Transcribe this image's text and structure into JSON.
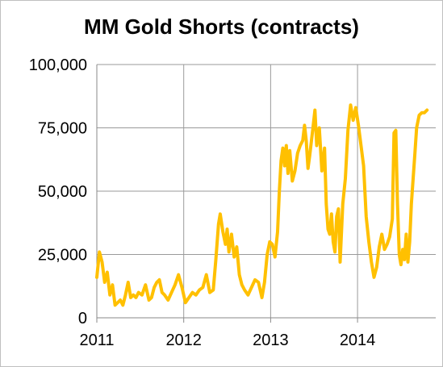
{
  "chart_data": {
    "type": "line",
    "title": "MM Gold Shorts (contracts)",
    "xlabel": "",
    "ylabel": "",
    "ylim": [
      0,
      100000
    ],
    "xlim": [
      2011,
      2014.9
    ],
    "y_ticks": [
      {
        "value": 0,
        "label": "0"
      },
      {
        "value": 25000,
        "label": "25,000"
      },
      {
        "value": 50000,
        "label": "50,000"
      },
      {
        "value": 75000,
        "label": "75,000"
      },
      {
        "value": 100000,
        "label": "100,000"
      }
    ],
    "x_ticks": [
      {
        "value": 2011,
        "label": "2011"
      },
      {
        "value": 2012,
        "label": "2012"
      },
      {
        "value": 2013,
        "label": "2013"
      },
      {
        "value": 2014,
        "label": "2014"
      }
    ],
    "grid": true,
    "legend": "none",
    "color": "#ffc000",
    "series": [
      {
        "x": [
          2011.0,
          2011.03,
          2011.06,
          2011.09,
          2011.12,
          2011.15,
          2011.18,
          2011.21,
          2011.24,
          2011.27,
          2011.3,
          2011.33,
          2011.36,
          2011.39,
          2011.42,
          2011.45,
          2011.48,
          2011.52,
          2011.56,
          2011.6,
          2011.63,
          2011.66,
          2011.69,
          2011.72,
          2011.75,
          2011.78,
          2011.82,
          2011.86,
          2011.9,
          2011.94,
          2011.98,
          2012.02,
          2012.06,
          2012.1,
          2012.14,
          2012.18,
          2012.22,
          2012.26,
          2012.3,
          2012.34,
          2012.37,
          2012.4,
          2012.42,
          2012.45,
          2012.48,
          2012.5,
          2012.52,
          2012.55,
          2012.58,
          2012.61,
          2012.64,
          2012.67,
          2012.7,
          2012.74,
          2012.78,
          2012.82,
          2012.86,
          2012.9,
          2012.93,
          2012.96,
          2012.99,
          2013.02,
          2013.05,
          2013.08,
          2013.1,
          2013.12,
          2013.14,
          2013.16,
          2013.18,
          2013.2,
          2013.22,
          2013.25,
          2013.28,
          2013.31,
          2013.34,
          2013.37,
          2013.39,
          2013.41,
          2013.43,
          2013.45,
          2013.47,
          2013.49,
          2013.51,
          2013.53,
          2013.56,
          2013.59,
          2013.62,
          2013.64,
          2013.66,
          2013.68,
          2013.7,
          2013.72,
          2013.74,
          2013.76,
          2013.78,
          2013.8,
          2013.83,
          2013.86,
          2013.89,
          2013.92,
          2013.95,
          2013.98,
          2014.01,
          2014.04,
          2014.07,
          2014.1,
          2014.13,
          2014.16,
          2014.19,
          2014.22,
          2014.25,
          2014.28,
          2014.31,
          2014.34,
          2014.37,
          2014.4,
          2014.42,
          2014.44,
          2014.46,
          2014.48,
          2014.5,
          2014.52,
          2014.54,
          2014.56,
          2014.58,
          2014.6,
          2014.62,
          2014.64,
          2014.66,
          2014.68,
          2014.71,
          2014.74,
          2014.77,
          2014.8
        ],
        "y": [
          16000,
          26000,
          22000,
          14000,
          18000,
          9000,
          13000,
          5000,
          6000,
          7000,
          5000,
          9000,
          14000,
          8000,
          9000,
          8000,
          10000,
          9000,
          13000,
          7000,
          8000,
          12000,
          14000,
          15000,
          10000,
          9000,
          7000,
          10000,
          13000,
          17000,
          12000,
          6000,
          8000,
          10000,
          9000,
          11000,
          12000,
          17000,
          10000,
          11000,
          23000,
          37000,
          41000,
          34000,
          29000,
          35000,
          26000,
          33000,
          24000,
          28000,
          17000,
          13000,
          11000,
          9000,
          12000,
          15000,
          14000,
          8000,
          14000,
          25000,
          30000,
          29000,
          24000,
          34000,
          50000,
          62000,
          67000,
          60000,
          68000,
          57000,
          66000,
          54000,
          58000,
          65000,
          68000,
          70000,
          76000,
          70000,
          59000,
          64000,
          70000,
          76000,
          82000,
          68000,
          75000,
          58000,
          67000,
          45000,
          35000,
          33000,
          41000,
          30000,
          26000,
          40000,
          43000,
          22000,
          45000,
          55000,
          74000,
          84000,
          78000,
          83000,
          76000,
          68000,
          60000,
          40000,
          30000,
          22000,
          16000,
          20000,
          28000,
          33000,
          27000,
          29000,
          32000,
          39000,
          73000,
          74000,
          45000,
          25000,
          21000,
          27000,
          23000,
          33000,
          22000,
          30000,
          45000,
          55000,
          65000,
          75000,
          80000,
          81000,
          81000,
          82000
        ]
      }
    ]
  }
}
